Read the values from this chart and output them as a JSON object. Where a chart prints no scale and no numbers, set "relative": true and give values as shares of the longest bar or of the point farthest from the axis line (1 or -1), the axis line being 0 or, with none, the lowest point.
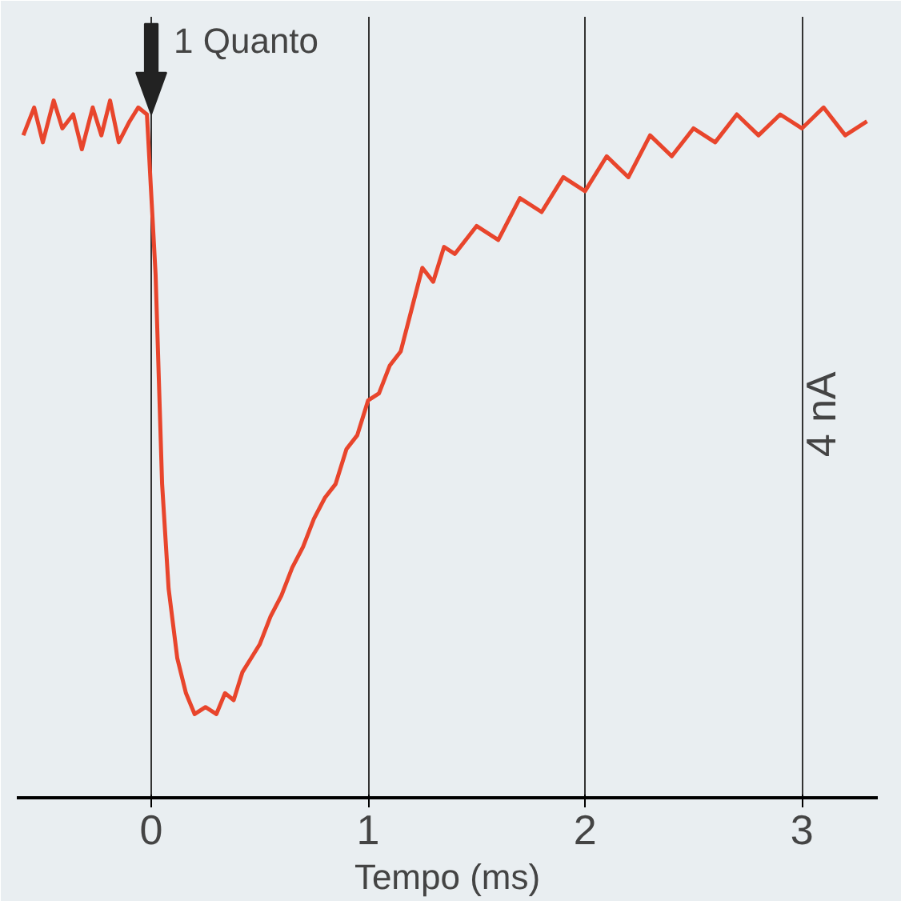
{
  "chart_data": {
    "type": "line",
    "relative": true,
    "xlabel": "Tempo (ms)",
    "annotations": [
      {
        "text": "1 Quanto",
        "x": 0,
        "y": 0.98
      },
      "4 nA"
    ],
    "xlim": [
      -0.62,
      3.35
    ],
    "xticks": [
      0,
      1,
      2,
      3
    ],
    "grid": "x",
    "line_style": "solid",
    "marker": "none",
    "series": [
      {
        "color": "#e8452c",
        "x": [
          -0.59,
          -0.54,
          -0.5,
          -0.45,
          -0.41,
          -0.36,
          -0.32,
          -0.27,
          -0.23,
          -0.19,
          -0.15,
          -0.1,
          -0.06,
          -0.02,
          0.02,
          0.05,
          0.08,
          0.12,
          0.16,
          0.2,
          0.25,
          0.3,
          0.34,
          0.38,
          0.42,
          0.46,
          0.5,
          0.55,
          0.6,
          0.65,
          0.7,
          0.75,
          0.8,
          0.85,
          0.9,
          0.95,
          1.0,
          1.05,
          1.1,
          1.15,
          1.2,
          1.25,
          1.3,
          1.35,
          1.4,
          1.5,
          1.6,
          1.7,
          1.8,
          1.9,
          2.0,
          2.1,
          2.2,
          2.3,
          2.4,
          2.5,
          2.6,
          2.7,
          2.8,
          2.9,
          3.0,
          3.1,
          3.2,
          3.3
        ],
        "values": [
          0.95,
          0.99,
          0.94,
          1.0,
          0.96,
          0.98,
          0.93,
          0.99,
          0.95,
          1.0,
          0.94,
          0.97,
          0.99,
          0.98,
          0.75,
          0.45,
          0.3,
          0.2,
          0.15,
          0.12,
          0.13,
          0.12,
          0.15,
          0.14,
          0.18,
          0.2,
          0.22,
          0.26,
          0.29,
          0.33,
          0.36,
          0.4,
          0.43,
          0.45,
          0.5,
          0.52,
          0.57,
          0.58,
          0.62,
          0.64,
          0.7,
          0.76,
          0.74,
          0.79,
          0.78,
          0.82,
          0.8,
          0.86,
          0.84,
          0.89,
          0.87,
          0.92,
          0.89,
          0.95,
          0.92,
          0.96,
          0.94,
          0.98,
          0.95,
          0.98,
          0.96,
          0.99,
          0.95,
          0.97
        ]
      }
    ]
  }
}
